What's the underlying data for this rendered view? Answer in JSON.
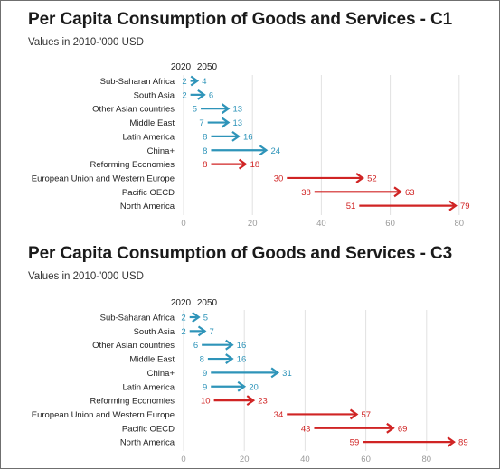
{
  "colors": {
    "blue": "#2e94b9",
    "red": "#d02424",
    "grid": "#e2e2e2"
  },
  "chart_data": [
    {
      "type": "arrow",
      "title": "Per Capita Consumption of Goods and Services - C1",
      "subtitle": "Values in 2010-'000 USD",
      "column_headers": [
        "2020",
        "2050"
      ],
      "x_ticks": [
        0,
        20,
        40,
        60,
        80
      ],
      "xlim": [
        0,
        80
      ],
      "grid": true,
      "categories": [
        "Sub-Saharan Africa",
        "South Asia",
        "Other Asian countries",
        "Middle East",
        "Latin America",
        "China+",
        "Reforming Economies",
        "European Union and Western Europe",
        "Pacific OECD",
        "North America"
      ],
      "series": [
        {
          "name": "2020",
          "values": [
            2,
            2,
            5,
            7,
            8,
            8,
            8,
            30,
            38,
            51
          ]
        },
        {
          "name": "2050",
          "values": [
            4,
            6,
            13,
            13,
            16,
            24,
            18,
            52,
            63,
            79
          ]
        }
      ],
      "colors": [
        "blue",
        "blue",
        "blue",
        "blue",
        "blue",
        "blue",
        "red",
        "red",
        "red",
        "red"
      ]
    },
    {
      "type": "arrow",
      "title": "Per Capita Consumption of Goods and Services - C3",
      "subtitle": "Values in 2010-'000 USD",
      "column_headers": [
        "2020",
        "2050"
      ],
      "x_ticks": [
        0,
        20,
        40,
        60,
        80
      ],
      "xlim": [
        0,
        90
      ],
      "grid": true,
      "categories": [
        "Sub-Saharan Africa",
        "South Asia",
        "Other Asian countries",
        "Middle East",
        "China+",
        "Latin America",
        "Reforming Economies",
        "European Union and Western Europe",
        "Pacific OECD",
        "North America"
      ],
      "series": [
        {
          "name": "2020",
          "values": [
            2,
            2,
            6,
            8,
            9,
            9,
            10,
            34,
            43,
            59
          ]
        },
        {
          "name": "2050",
          "values": [
            5,
            7,
            16,
            16,
            31,
            20,
            23,
            57,
            69,
            89
          ]
        }
      ],
      "colors": [
        "blue",
        "blue",
        "blue",
        "blue",
        "blue",
        "blue",
        "red",
        "red",
        "red",
        "red"
      ]
    }
  ]
}
